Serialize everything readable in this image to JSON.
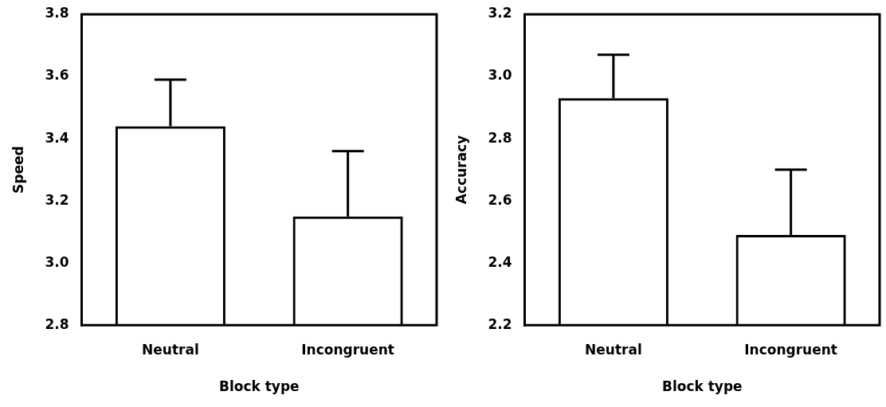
{
  "chart_data": [
    {
      "type": "bar",
      "categories": [
        "Neutral",
        "Incongruent"
      ],
      "values": [
        3.44,
        3.15
      ],
      "errors": [
        [
          3.44,
          3.59
        ],
        [
          3.15,
          3.36
        ]
      ],
      "color": "#000000",
      "xlabel": "Block type",
      "ylabel": "Speed",
      "ylim": [
        2.8,
        3.8
      ],
      "yticks": [
        2.8,
        {
          "value": 3,
          "label": "3.0"
        },
        3.2,
        3.4,
        3.6,
        3.8
      ],
      "grid": false,
      "legend": false
    },
    {
      "type": "bar",
      "categories": [
        "Neutral",
        "Incongruent"
      ],
      "values": [
        2.93,
        2.49
      ],
      "errors": [
        [
          2.93,
          3.07
        ],
        [
          2.49,
          2.7
        ]
      ],
      "color": "#000000",
      "xlabel": "Block type",
      "ylabel": "Accuracy",
      "ylim": [
        2.2,
        3.2
      ],
      "yticks": [
        2.2,
        2.4,
        2.6,
        2.8,
        {
          "value": 3,
          "label": "3.0"
        },
        3.2
      ],
      "grid": false,
      "legend": false
    }
  ]
}
